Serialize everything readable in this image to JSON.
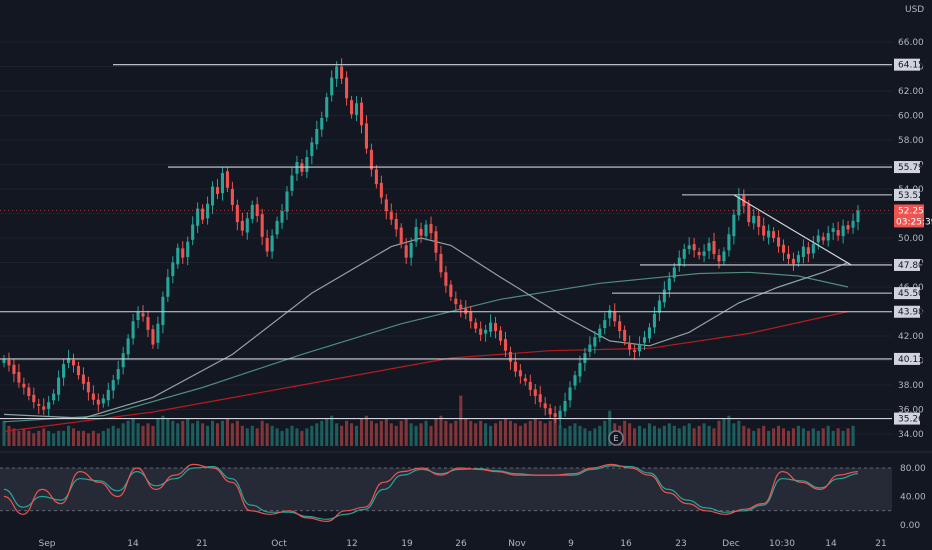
{
  "chart_data": {
    "type": "candlestick",
    "currency": "USD",
    "x_ticks": [
      "Sep",
      "14",
      "21",
      "Oct",
      "12",
      "19",
      "26",
      "Nov",
      "9",
      "16",
      "23",
      "Dec",
      "10:30",
      "14",
      "21"
    ],
    "price_axis": {
      "min": 34,
      "max": 66,
      "step": 2,
      "labels": [
        "34.00",
        "36.00",
        "38.00",
        "40.00",
        "42.00",
        "44.00",
        "46.00",
        "48.00",
        "50.00",
        "52.00",
        "54.00",
        "56.00",
        "58.00",
        "60.00",
        "62.00",
        "64.00",
        "66.00"
      ]
    },
    "last_price": {
      "value": 52.25,
      "label": "52.25",
      "countdown": "03:25:39"
    },
    "levels": [
      {
        "value": 64.15,
        "label": "64.15"
      },
      {
        "value": 55.79,
        "label": "55.79"
      },
      {
        "value": 53.52,
        "label": "53.52"
      },
      {
        "value": 47.8,
        "label": "47.80"
      },
      {
        "value": 45.5,
        "label": "45.50"
      },
      {
        "value": 43.98,
        "label": "43.98"
      },
      {
        "value": 40.13,
        "label": "40.13"
      },
      {
        "value": 35.26,
        "label": "35.26"
      }
    ],
    "closes": [
      40.1,
      39.6,
      38.9,
      38.2,
      37.8,
      37.1,
      36.6,
      36.3,
      36.0,
      36.6,
      37.3,
      38.6,
      39.7,
      40.2,
      39.6,
      38.8,
      38.1,
      37.4,
      36.8,
      36.4,
      36.9,
      37.6,
      38.4,
      39.3,
      40.6,
      41.8,
      43.2,
      44.0,
      43.6,
      42.5,
      41.3,
      43.0,
      45.2,
      46.8,
      48.0,
      49.2,
      48.4,
      49.7,
      51.1,
      52.4,
      51.5,
      52.8,
      54.2,
      53.6,
      55.3,
      54.1,
      52.7,
      51.3,
      50.6,
      51.6,
      52.7,
      51.8,
      50.1,
      48.9,
      50.2,
      51.4,
      52.2,
      53.8,
      55.1,
      56.2,
      55.4,
      56.6,
      57.8,
      58.9,
      59.8,
      61.5,
      63.1,
      64.0,
      63.0,
      61.4,
      60.1,
      61.0,
      59.2,
      57.3,
      55.6,
      54.4,
      53.3,
      52.2,
      51.5,
      50.7,
      49.5,
      48.4,
      49.6,
      50.9,
      50.2,
      51.1,
      50.4,
      48.8,
      47.2,
      46.1,
      45.2,
      44.6,
      44.2,
      43.8,
      43.2,
      42.6,
      42.1,
      42.5,
      43.1,
      42.4,
      41.6,
      40.8,
      39.9,
      39.1,
      38.7,
      38.3,
      37.6,
      37.1,
      36.6,
      36.1,
      35.6,
      35.4,
      35.9,
      36.7,
      37.8,
      38.8,
      39.8,
      40.6,
      41.3,
      41.9,
      42.6,
      43.3,
      44.1,
      43.2,
      42.4,
      41.6,
      40.9,
      40.7,
      41.3,
      41.9,
      42.7,
      43.8,
      44.9,
      45.8,
      46.7,
      47.6,
      48.4,
      49.1,
      49.4,
      49.0,
      48.6,
      48.9,
      49.6,
      48.7,
      48.1,
      48.9,
      50.3,
      51.9,
      53.4,
      52.6,
      51.3,
      51.8,
      50.9,
      50.2,
      50.6,
      50.0,
      49.3,
      48.8,
      48.3,
      47.9,
      48.6,
      49.3,
      48.7,
      49.5,
      50.2,
      49.8,
      50.4,
      50.8,
      50.2,
      51.0,
      50.7,
      51.4,
      52.25
    ],
    "volumes": [
      0.5,
      0.4,
      0.35,
      0.3,
      0.35,
      0.3,
      0.25,
      0.3,
      0.35,
      0.3,
      0.25,
      0.3,
      0.3,
      0.4,
      0.35,
      0.3,
      0.3,
      0.25,
      0.3,
      0.25,
      0.3,
      0.35,
      0.4,
      0.35,
      0.45,
      0.5,
      0.55,
      0.45,
      0.4,
      0.45,
      0.4,
      0.55,
      0.6,
      0.55,
      0.5,
      0.45,
      0.5,
      0.55,
      0.45,
      0.5,
      0.45,
      0.4,
      0.5,
      0.45,
      0.5,
      0.55,
      0.45,
      0.5,
      0.4,
      0.35,
      0.4,
      0.35,
      0.5,
      0.45,
      0.4,
      0.35,
      0.3,
      0.35,
      0.4,
      0.35,
      0.3,
      0.35,
      0.4,
      0.45,
      0.5,
      0.55,
      0.6,
      0.45,
      0.4,
      0.5,
      0.45,
      0.4,
      0.55,
      0.6,
      0.5,
      0.45,
      0.5,
      0.55,
      0.45,
      0.4,
      0.5,
      0.55,
      0.45,
      0.4,
      0.45,
      0.5,
      0.4,
      0.55,
      0.6,
      0.5,
      0.45,
      0.5,
      1.0,
      0.55,
      0.5,
      0.45,
      0.5,
      0.45,
      0.4,
      0.45,
      0.5,
      0.55,
      0.5,
      0.45,
      0.4,
      0.45,
      0.5,
      0.55,
      0.5,
      0.45,
      0.5,
      0.55,
      0.4,
      0.35,
      0.4,
      0.45,
      0.4,
      0.35,
      0.3,
      0.35,
      0.4,
      0.5,
      0.7,
      0.45,
      0.4,
      0.5,
      0.45,
      0.35,
      0.4,
      0.35,
      0.45,
      0.4,
      0.35,
      0.4,
      0.45,
      0.4,
      0.35,
      0.4,
      0.45,
      0.35,
      0.4,
      0.45,
      0.4,
      0.35,
      0.5,
      0.55,
      0.6,
      0.45,
      0.5,
      0.4,
      0.35,
      0.3,
      0.35,
      0.4,
      0.3,
      0.35,
      0.4,
      0.35,
      0.3,
      0.35,
      0.4,
      0.35,
      0.3,
      0.35,
      0.3,
      0.35,
      0.4,
      0.3,
      0.35,
      0.3,
      0.35,
      0.4
    ],
    "ma_fast": [
      [
        0,
        35.6
      ],
      [
        16,
        35.3
      ],
      [
        30,
        37.0
      ],
      [
        46,
        40.5
      ],
      [
        62,
        45.5
      ],
      [
        78,
        49.3
      ],
      [
        84,
        50.0
      ],
      [
        90,
        49.4
      ],
      [
        100,
        46.8
      ],
      [
        112,
        43.8
      ],
      [
        122,
        41.6
      ],
      [
        130,
        41.2
      ],
      [
        138,
        42.3
      ],
      [
        148,
        44.7
      ],
      [
        156,
        46.0
      ],
      [
        165,
        47.2
      ],
      [
        170,
        48.0
      ]
    ],
    "ma_mid": [
      [
        0,
        35.0
      ],
      [
        20,
        35.5
      ],
      [
        40,
        37.8
      ],
      [
        60,
        40.5
      ],
      [
        80,
        43.0
      ],
      [
        100,
        45.0
      ],
      [
        120,
        46.3
      ],
      [
        140,
        47.1
      ],
      [
        150,
        47.2
      ],
      [
        160,
        46.9
      ],
      [
        170,
        46.0
      ]
    ],
    "ma_slow": [
      [
        0,
        34.2
      ],
      [
        30,
        35.8
      ],
      [
        60,
        38.0
      ],
      [
        90,
        40.2
      ],
      [
        110,
        40.8
      ],
      [
        130,
        41.0
      ],
      [
        150,
        42.2
      ],
      [
        170,
        44.0
      ]
    ],
    "trendline": [
      [
        147,
        53.52
      ],
      [
        169,
        47.8
      ]
    ],
    "oscillator": {
      "ticks": [
        "80.00",
        "40.00",
        "0.00"
      ],
      "k": [
        40,
        15,
        50,
        30,
        75,
        60,
        40,
        80,
        50,
        70,
        85,
        80,
        60,
        20,
        15,
        20,
        10,
        5,
        20,
        25,
        60,
        75,
        80,
        70,
        80,
        78,
        75,
        70,
        70,
        70,
        72,
        80,
        85,
        80,
        70,
        45,
        30,
        20,
        15,
        22,
        30,
        75,
        60,
        50,
        70,
        75
      ],
      "d": [
        50,
        25,
        40,
        35,
        65,
        62,
        48,
        75,
        55,
        65,
        80,
        82,
        65,
        28,
        18,
        18,
        12,
        8,
        15,
        22,
        50,
        70,
        78,
        72,
        78,
        79,
        76,
        72,
        70,
        70,
        70,
        78,
        83,
        82,
        73,
        50,
        35,
        24,
        18,
        20,
        28,
        65,
        62,
        52,
        65,
        72
      ]
    },
    "earnings_marker": "E"
  }
}
